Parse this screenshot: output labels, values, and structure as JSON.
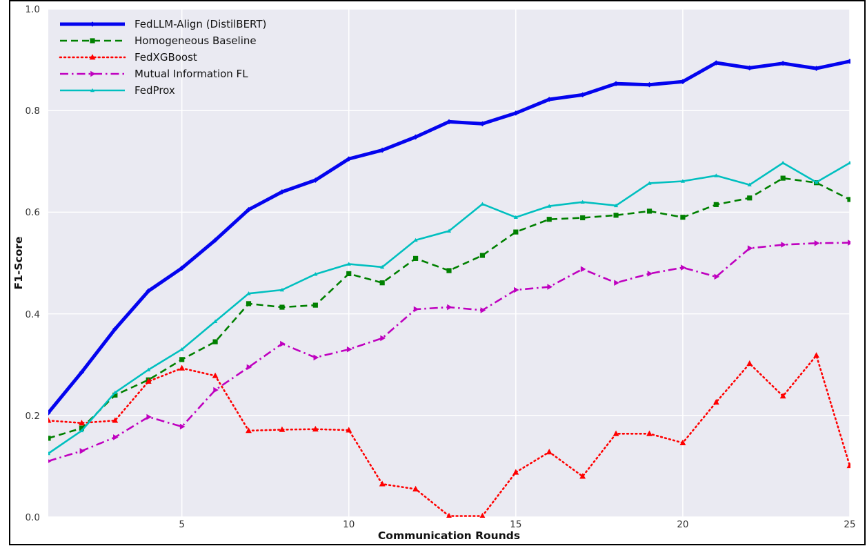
{
  "chart_data": {
    "type": "line",
    "title": "",
    "xlabel": "Communication Rounds",
    "ylabel": "F1-Score",
    "xlim": [
      1,
      25
    ],
    "ylim": [
      0.0,
      1.0
    ],
    "grid": true,
    "legend_position": "upper left",
    "plot_background": "#eaeaf2",
    "grid_color": "#ffffff",
    "tick_label_color": "#333333",
    "axis_label_color": "#111111",
    "x_ticks": [
      {
        "label": "5",
        "value": 5
      },
      {
        "label": "10",
        "value": 10
      },
      {
        "label": "15",
        "value": 15
      },
      {
        "label": "20",
        "value": 20
      },
      {
        "label": "25",
        "value": 25
      }
    ],
    "y_ticks": [
      {
        "label": "0.0",
        "value": 0.0
      },
      {
        "label": "0.2",
        "value": 0.2
      },
      {
        "label": "0.4",
        "value": 0.4
      },
      {
        "label": "0.6",
        "value": 0.6
      },
      {
        "label": "0.8",
        "value": 0.8
      },
      {
        "label": "1.0",
        "value": 1.0
      }
    ],
    "x": [
      1,
      2,
      3,
      4,
      5,
      6,
      7,
      8,
      9,
      10,
      11,
      12,
      13,
      14,
      15,
      16,
      17,
      18,
      19,
      20,
      21,
      22,
      23,
      24,
      25
    ],
    "series": [
      {
        "name": "FedLLM-Align (DistilBERT)",
        "color": "#0404ee",
        "line_width": 5,
        "line_style": "solid",
        "marker": "diamond",
        "values": [
          0.205,
          0.285,
          0.37,
          0.445,
          0.49,
          0.545,
          0.605,
          0.64,
          0.663,
          0.705,
          0.722,
          0.748,
          0.778,
          0.774,
          0.795,
          0.822,
          0.831,
          0.853,
          0.851,
          0.857,
          0.894,
          0.884,
          0.893,
          0.883,
          0.897
        ]
      },
      {
        "name": "Homogeneous Baseline",
        "color": "#008000",
        "line_width": 2.6,
        "line_style": "dashed",
        "marker": "square",
        "values": [
          0.155,
          0.175,
          0.24,
          0.27,
          0.31,
          0.345,
          0.42,
          0.413,
          0.417,
          0.479,
          0.461,
          0.509,
          0.485,
          0.515,
          0.561,
          0.586,
          0.589,
          0.594,
          0.602,
          0.59,
          0.615,
          0.628,
          0.667,
          0.658,
          0.625
        ]
      },
      {
        "name": "FedXGBoost",
        "color": "#ff0000",
        "line_width": 2.6,
        "line_style": "dotted",
        "marker": "triangle_up",
        "values": [
          0.19,
          0.185,
          0.19,
          0.267,
          0.293,
          0.278,
          0.17,
          0.172,
          0.173,
          0.171,
          0.065,
          0.055,
          0.002,
          0.002,
          0.088,
          0.128,
          0.08,
          0.164,
          0.164,
          0.146,
          0.226,
          0.302,
          0.238,
          0.318,
          0.101
        ]
      },
      {
        "name": "Mutual Information FL",
        "color": "#bf00bf",
        "line_width": 2.6,
        "line_style": "dashdot",
        "marker": "triangle_right",
        "values": [
          0.11,
          0.13,
          0.157,
          0.197,
          0.178,
          0.25,
          0.295,
          0.341,
          0.314,
          0.33,
          0.352,
          0.409,
          0.413,
          0.407,
          0.447,
          0.453,
          0.488,
          0.461,
          0.479,
          0.491,
          0.473,
          0.529,
          0.536,
          0.539,
          0.54
        ]
      },
      {
        "name": "FedProx",
        "color": "#00bfbf",
        "line_width": 2.6,
        "line_style": "solid",
        "marker": "tri_small",
        "values": [
          0.125,
          0.17,
          0.245,
          0.29,
          0.33,
          0.385,
          0.44,
          0.447,
          0.478,
          0.498,
          0.492,
          0.545,
          0.563,
          0.616,
          0.59,
          0.612,
          0.62,
          0.613,
          0.657,
          0.661,
          0.672,
          0.654,
          0.697,
          0.659,
          0.697
        ]
      }
    ]
  }
}
